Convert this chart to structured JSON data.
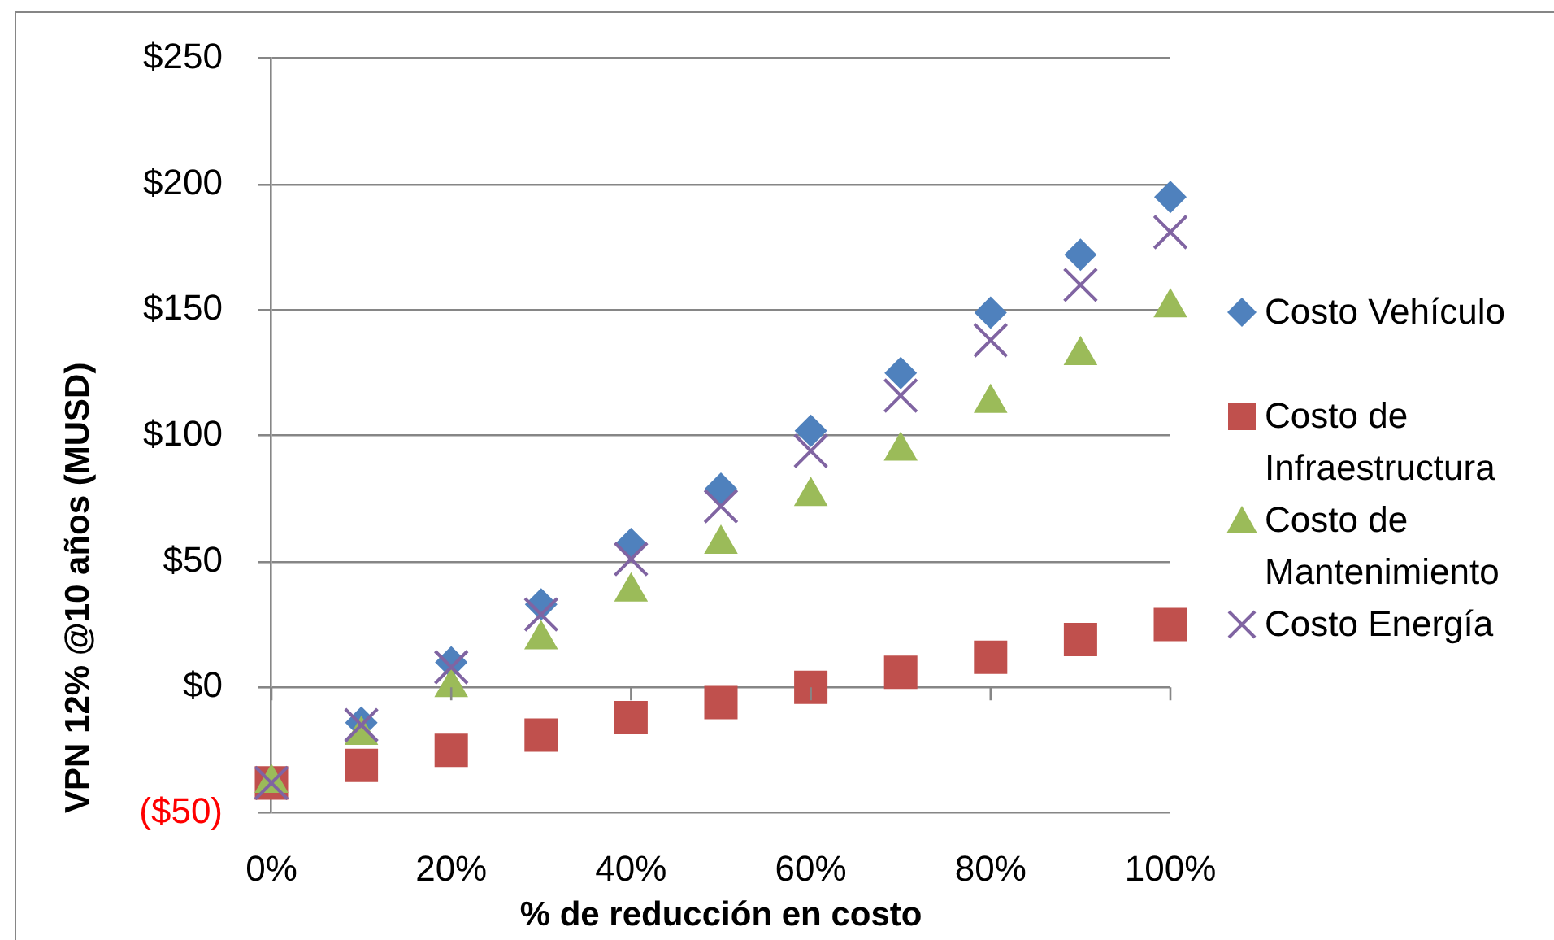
{
  "chart_data": {
    "type": "scatter",
    "xlabel": "% de reducción en costo",
    "ylabel": "VPN 12% @10 años (MUSD)",
    "x": [
      0,
      10,
      20,
      30,
      40,
      50,
      60,
      70,
      80,
      90,
      100
    ],
    "xlim": [
      0,
      100
    ],
    "xticks": [
      {
        "value": 0,
        "label": "0%"
      },
      {
        "value": 20,
        "label": "20%"
      },
      {
        "value": 40,
        "label": "40%"
      },
      {
        "value": 60,
        "label": "60%"
      },
      {
        "value": 80,
        "label": "80%"
      },
      {
        "value": 100,
        "label": "100%"
      }
    ],
    "ylim": [
      -50,
      250
    ],
    "yticks": [
      {
        "value": -50,
        "label": "($50)"
      },
      {
        "value": 0,
        "label": "$0"
      },
      {
        "value": 50,
        "label": "$50"
      },
      {
        "value": 100,
        "label": "$100"
      },
      {
        "value": 150,
        "label": "$150"
      },
      {
        "value": 200,
        "label": "$200"
      },
      {
        "value": 250,
        "label": "$250"
      }
    ],
    "grid": "y",
    "legend": "right",
    "series": [
      {
        "name": "Costo Vehículo",
        "color": "#4f81bd",
        "marker": "diamond",
        "values": [
          null,
          -14,
          10,
          33,
          57,
          79,
          102,
          125,
          149,
          172,
          195
        ]
      },
      {
        "name": "Costo de Infraestructura",
        "color": "#c0504d",
        "marker": "square",
        "values": [
          -38,
          -31,
          -25,
          -19,
          -12,
          -6,
          0,
          6,
          12,
          19,
          25
        ]
      },
      {
        "name": "Costo de Mantenimiento",
        "color": "#9bbb59",
        "marker": "triangle",
        "values": [
          -38,
          -19,
          0,
          19,
          38,
          57,
          76,
          94,
          113,
          132,
          151
        ]
      },
      {
        "name": "Costo Energía",
        "color": "#8064a2",
        "marker": "cross",
        "values": [
          -38,
          -15,
          8,
          29,
          51,
          72,
          94,
          116,
          138,
          160,
          181
        ]
      }
    ]
  }
}
